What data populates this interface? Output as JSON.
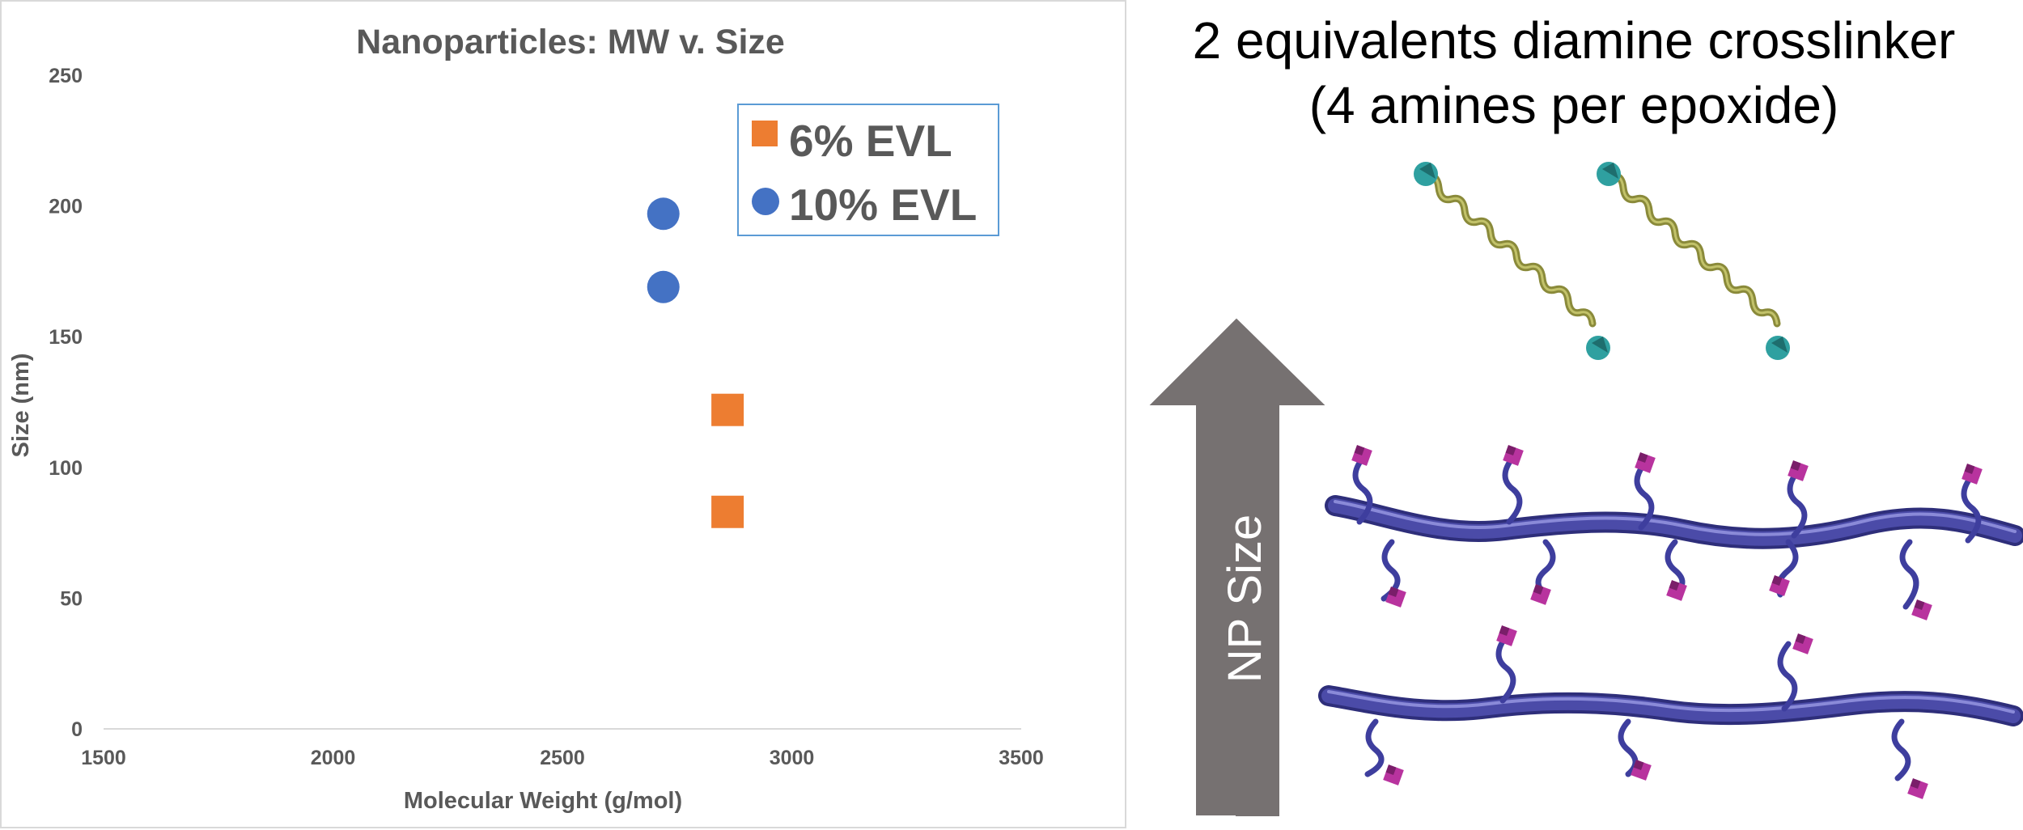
{
  "chart_data": {
    "type": "scatter",
    "title": "Nanoparticles: MW v. Size",
    "xlabel": "Molecular Weight (g/mol)",
    "ylabel": "Size (nm)",
    "xlim": [
      1500,
      3500
    ],
    "ylim": [
      0,
      250
    ],
    "xticks": [
      1500,
      2000,
      2500,
      3000,
      3500
    ],
    "yticks": [
      0,
      50,
      100,
      150,
      200,
      250
    ],
    "grid": false,
    "legend_position": "top-right",
    "series": [
      {
        "name": "6% EVL",
        "marker": "square",
        "color": "#ED7D31",
        "points": [
          {
            "x": 2860,
            "y": 122
          },
          {
            "x": 2860,
            "y": 83
          }
        ]
      },
      {
        "name": "10% EVL",
        "marker": "circle",
        "color": "#4472C4",
        "points": [
          {
            "x": 2720,
            "y": 197
          },
          {
            "x": 2720,
            "y": 169
          }
        ]
      }
    ]
  },
  "illustration": {
    "heading_line1": "2 equivalents diamine crosslinker",
    "heading_line2": "(4 amines per epoxide)",
    "arrow_label": "NP Size",
    "colors": {
      "arrow": "#767171",
      "crosslinker": "#8A8A3A",
      "amine_end": "#2FA0A0",
      "polymer": "#4B4BA8",
      "epoxide": "#B8339E"
    }
  }
}
